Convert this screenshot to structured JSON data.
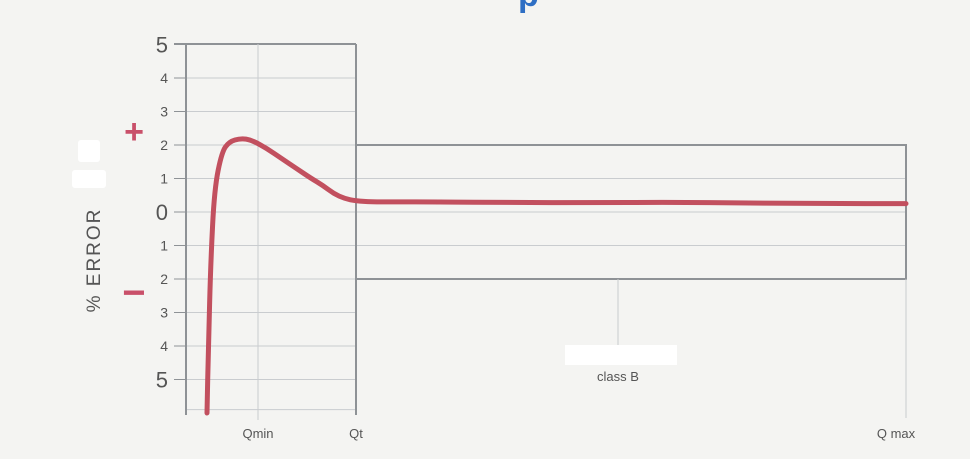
{
  "colors": {
    "background": "#f4f4f2",
    "frame": "#8e9296",
    "grid": "#c9cccf",
    "curve": "#c2505f",
    "sign": "#c9506a",
    "text": "#555555",
    "header_fragment": "#2f6fc4"
  },
  "chart_data": {
    "type": "line",
    "title": "",
    "xlabel": "",
    "ylabel": "% ERROR",
    "ylim": [
      -6,
      5
    ],
    "grid": true,
    "y_ticks": [
      {
        "value": 5,
        "label": "5"
      },
      {
        "value": 4,
        "label": "4"
      },
      {
        "value": 3,
        "label": "3"
      },
      {
        "value": 2,
        "label": "2"
      },
      {
        "value": 1,
        "label": "1"
      },
      {
        "value": 0,
        "label": "0"
      },
      {
        "value": -1,
        "label": "1"
      },
      {
        "value": -2,
        "label": "2"
      },
      {
        "value": -3,
        "label": "3"
      },
      {
        "value": -4,
        "label": "4"
      },
      {
        "value": -5,
        "label": "5"
      }
    ],
    "sign_labels": {
      "plus": "+",
      "minus": "−"
    },
    "x_markers": [
      {
        "key": "qmin",
        "label": "Qmin"
      },
      {
        "key": "qt",
        "label": "Qt"
      },
      {
        "key": "qmax",
        "label": "Q max"
      }
    ],
    "tolerance_band": {
      "label": "class B",
      "upper": 2,
      "lower": -2,
      "from": "Qt",
      "to": "Q max"
    },
    "series": [
      {
        "points": [
          [
            0.0,
            -6.0
          ],
          [
            0.02,
            -4.0
          ],
          [
            0.05,
            -1.5
          ],
          [
            0.1,
            0.7
          ],
          [
            0.2,
            1.8
          ],
          [
            0.3,
            2.1
          ],
          [
            0.45,
            2.2
          ],
          [
            0.6,
            2.15
          ],
          [
            0.8,
            1.9
          ],
          [
            1.0,
            1.6
          ],
          [
            1.2,
            1.3
          ],
          [
            1.4,
            1.0
          ],
          [
            1.55,
            0.8
          ],
          [
            1.7,
            0.55
          ],
          [
            1.85,
            0.4
          ],
          [
            2.0,
            0.33
          ],
          [
            2.2,
            0.3
          ],
          [
            2.5,
            0.3
          ],
          [
            3.0,
            0.3
          ],
          [
            4.0,
            0.28
          ],
          [
            5.0,
            0.28
          ],
          [
            6.0,
            0.29
          ],
          [
            7.0,
            0.27
          ],
          [
            8.0,
            0.25
          ],
          [
            9.0,
            0.25
          ]
        ]
      }
    ]
  },
  "header_fragment": "p"
}
